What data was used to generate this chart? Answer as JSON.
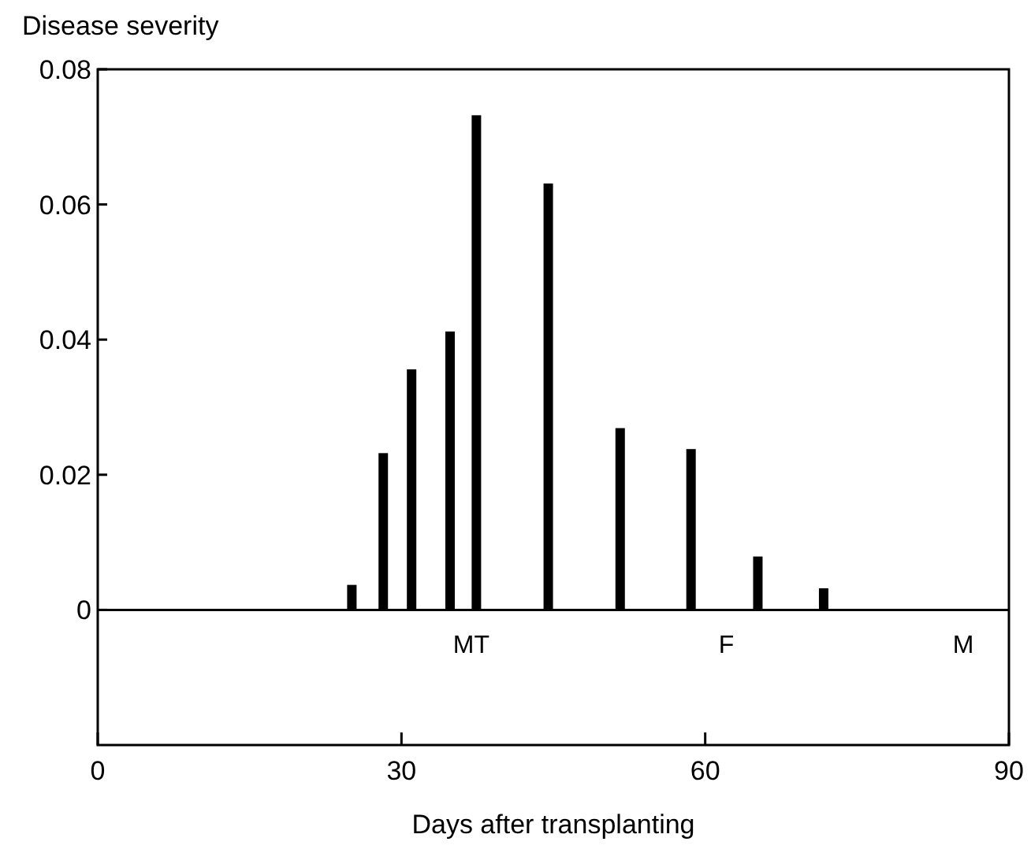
{
  "chart_data": {
    "type": "bar",
    "xlabel": "Days after transplanting",
    "ylabel": "Disease severity",
    "x": [
      25.1,
      28.2,
      31.0,
      34.8,
      37.4,
      44.5,
      51.6,
      58.6,
      65.2,
      71.7
    ],
    "values": [
      0.0037,
      0.0232,
      0.0356,
      0.0412,
      0.0732,
      0.0631,
      0.0269,
      0.0238,
      0.0079,
      0.0032
    ],
    "color": "#000000",
    "xlim": [
      0,
      90
    ],
    "xticks": [
      0,
      30,
      60,
      90
    ],
    "ylim": [
      -0.02,
      0.08
    ],
    "yticks": [
      0,
      0.02,
      0.04,
      0.06,
      0.08
    ],
    "ref_lines": [
      {
        "axis": "y",
        "value": 0
      }
    ],
    "annotations": [
      "MT",
      "F",
      "M"
    ],
    "grid": false
  }
}
